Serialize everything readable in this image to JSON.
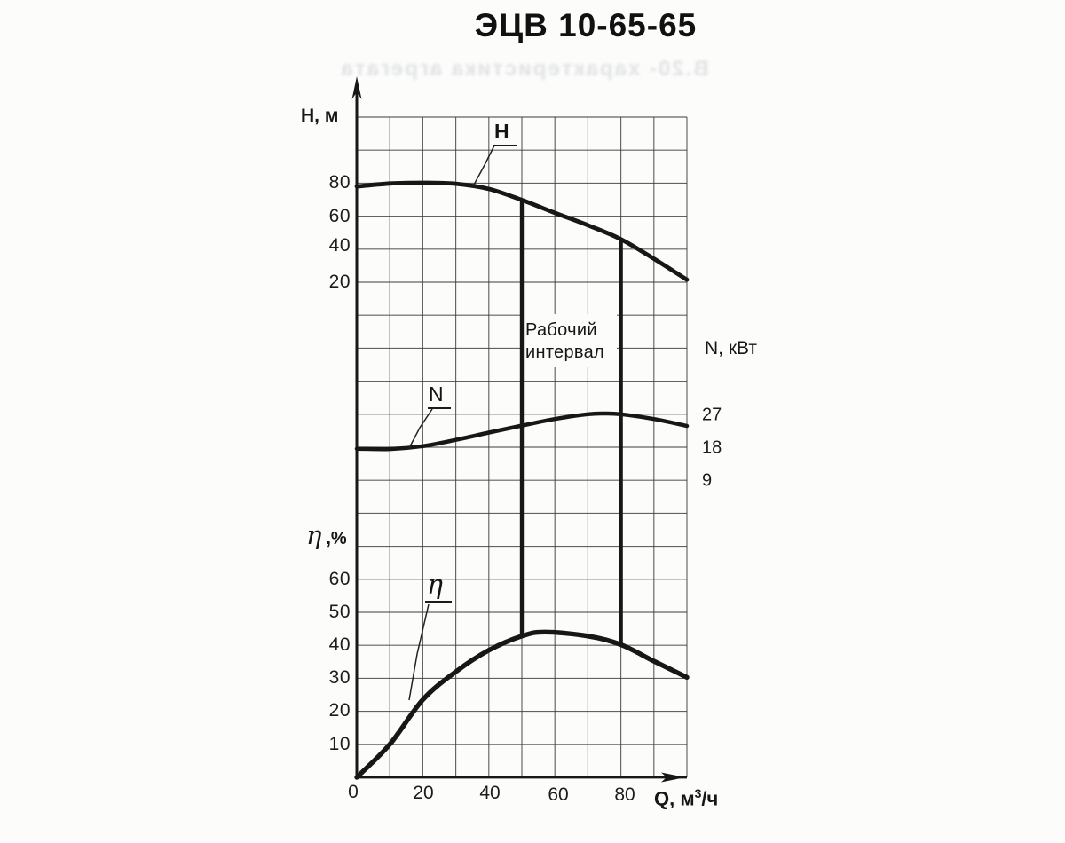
{
  "title": "ЭЦВ 10-65-65",
  "ghost_text": "В.20- характеристика агрегата",
  "axes": {
    "h": {
      "label": "Н, м",
      "ticks": [
        "80",
        "60",
        "40",
        "20"
      ]
    },
    "n": {
      "label": "N, кВт",
      "ticks": [
        "27",
        "18",
        "9"
      ]
    },
    "eta": {
      "label_symbol": "η",
      "label_unit": ",%",
      "ticks": [
        "60",
        "50",
        "40",
        "30",
        "20",
        "10"
      ]
    },
    "q": {
      "label_base": "Q, м",
      "label_sup": "3",
      "label_rest": "/ч",
      "ticks": [
        "0",
        "20",
        "40",
        "60",
        "80"
      ]
    }
  },
  "curve_labels": {
    "h": "Н",
    "n": "N",
    "eta": "η"
  },
  "annotation": {
    "line1": "Рабочий",
    "line2": "интервал"
  },
  "colors": {
    "ink": "#171717",
    "grid": "#3c3c3c",
    "paper": "#fcfcfb"
  },
  "chart_data": {
    "type": "line",
    "title": "ЭЦВ 10-65-65",
    "xlabel": "Q, м3/ч",
    "x_range": [
      0,
      100
    ],
    "x_tick_step": 20,
    "grid": true,
    "grid_divisions": {
      "columns": 10,
      "rows": 20
    },
    "series": [
      {
        "name": "H",
        "ylabel": "Н, м",
        "ticks_shown": [
          80,
          60,
          40,
          20
        ],
        "units_per_grid_div": 20,
        "axis_anchor": {
          "value": 80,
          "grid_row": 2
        },
        "x": [
          0,
          10,
          20,
          30,
          40,
          50,
          60,
          70,
          80,
          90,
          100
        ],
        "y": [
          78,
          79.8,
          80.2,
          79.6,
          76.5,
          69.8,
          62,
          54.5,
          46,
          34.2,
          21.5
        ]
      },
      {
        "name": "N",
        "ylabel": "N, кВт",
        "ticks_shown": [
          27,
          18,
          9
        ],
        "units_per_grid_div": 9,
        "axis_anchor": {
          "value": 27,
          "grid_row": 9
        },
        "x": [
          0,
          10,
          20,
          30,
          40,
          50,
          60,
          70,
          75,
          80,
          90,
          100
        ],
        "y": [
          17.6,
          17.5,
          18.3,
          20,
          22,
          23.9,
          25.7,
          27,
          27.2,
          27,
          25.7,
          23.8
        ]
      },
      {
        "name": "eta",
        "ylabel": "η, %",
        "ticks_shown": [
          60,
          50,
          40,
          30,
          20,
          10
        ],
        "units_per_grid_div": 10,
        "axis_anchor": {
          "value": 0,
          "grid_row": 20
        },
        "x": [
          0,
          10,
          20,
          30,
          40,
          50,
          57,
          70,
          80,
          90,
          100
        ],
        "y": [
          0,
          10,
          23.5,
          32,
          38.5,
          42.8,
          44,
          42.8,
          40.2,
          35.2,
          30.3
        ]
      }
    ],
    "working_interval": {
      "label": "Рабочий интервал",
      "q_from": 50,
      "q_to": 80
    }
  }
}
